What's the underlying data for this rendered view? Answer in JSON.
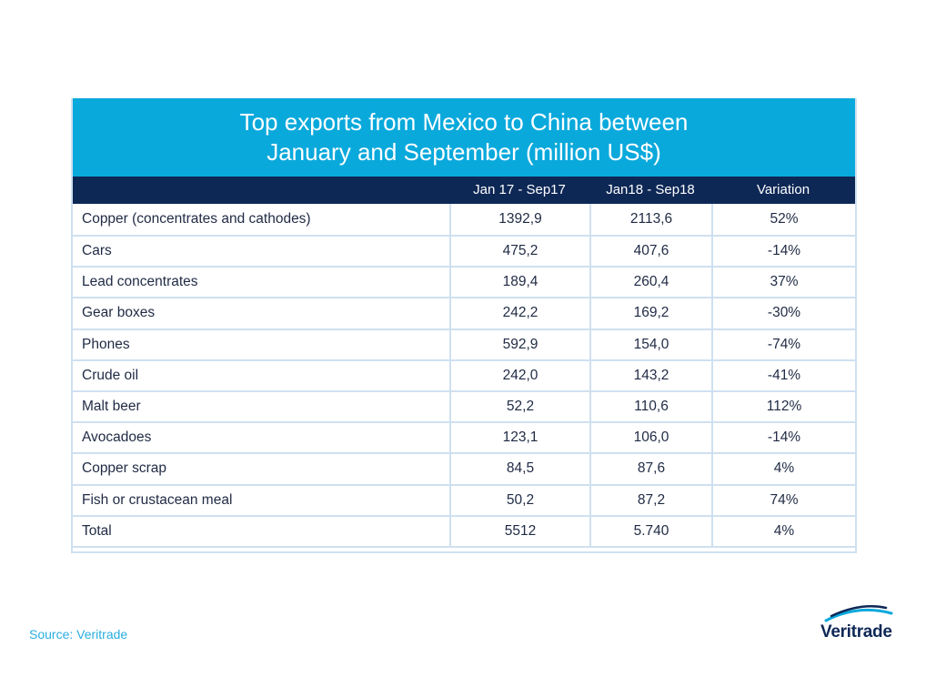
{
  "title_lines": [
    "Top exports from Mexico to China between",
    "January and September (million US$)"
  ],
  "source": "Source: Veritrade",
  "logo_text": "Veritrade",
  "colors": {
    "title_band": "#0aa9dc",
    "header_band": "#0e2856",
    "grid": "#cfe0f0",
    "source": "#2aaee0"
  },
  "chart_data": {
    "type": "table",
    "title": "Top exports from Mexico to China between January and September (million US$)",
    "columns": [
      "",
      "Jan 17 - Sep17",
      "Jan18 - Sep18",
      "Variation"
    ],
    "rows": [
      [
        "Copper (concentrates and cathodes)",
        "1392,9",
        "2113,6",
        "52%"
      ],
      [
        "Cars",
        "475,2",
        "407,6",
        "-14%"
      ],
      [
        "Lead concentrates",
        "189,4",
        "260,4",
        "37%"
      ],
      [
        "Gear boxes",
        "242,2",
        "169,2",
        "-30%"
      ],
      [
        "Phones",
        "592,9",
        "154,0",
        "-74%"
      ],
      [
        "Crude oil",
        "242,0",
        "143,2",
        "-41%"
      ],
      [
        "Malt beer",
        "52,2",
        "110,6",
        "112%"
      ],
      [
        "Avocadoes",
        "123,1",
        "106,0",
        "-14%"
      ],
      [
        "Copper scrap",
        "84,5",
        "87,6",
        "4%"
      ],
      [
        "Fish or crustacean meal",
        "50,2",
        "87,2",
        "74%"
      ],
      [
        "Total",
        "5512",
        "5.740",
        "4%"
      ]
    ]
  }
}
